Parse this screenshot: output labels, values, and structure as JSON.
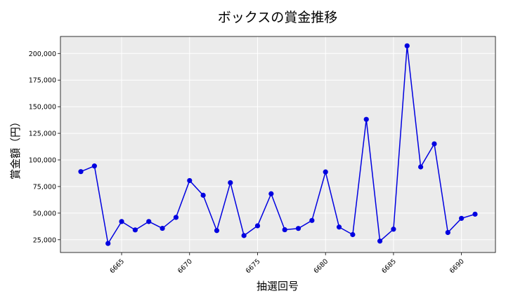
{
  "chart_data": {
    "type": "line",
    "title": "ボックスの賞金推移",
    "xlabel": "抽選回号",
    "ylabel": "賞金額（円）",
    "xlim": [
      6660.5,
      6692.5
    ],
    "ylim": [
      13000,
      216000
    ],
    "xticks": [
      6665,
      6670,
      6675,
      6680,
      6685,
      6690
    ],
    "xtick_labels": [
      "6665",
      "6670",
      "6675",
      "6680",
      "6685",
      "6690"
    ],
    "yticks": [
      25000,
      50000,
      75000,
      100000,
      125000,
      150000,
      175000,
      200000
    ],
    "ytick_labels": [
      "25,000",
      "50,000",
      "75,000",
      "100,000",
      "125,000",
      "150,000",
      "175,000",
      "200,000"
    ],
    "grid": true,
    "series": [
      {
        "color": "#0000e0",
        "x": [
          6662,
          6663,
          6664,
          6665,
          6666,
          6667,
          6668,
          6669,
          6670,
          6671,
          6672,
          6673,
          6674,
          6675,
          6676,
          6677,
          6678,
          6679,
          6680,
          6681,
          6682,
          6683,
          6684,
          6685,
          6686,
          6687,
          6688,
          6689,
          6690,
          6691
        ],
        "values": [
          89000,
          94300,
          21500,
          42100,
          34200,
          42100,
          35700,
          46000,
          80600,
          66800,
          33600,
          78600,
          28900,
          38100,
          68200,
          34400,
          35600,
          43100,
          88700,
          36900,
          29800,
          138100,
          23700,
          34900,
          207200,
          93400,
          115100,
          31800,
          45100,
          49000
        ]
      }
    ]
  }
}
